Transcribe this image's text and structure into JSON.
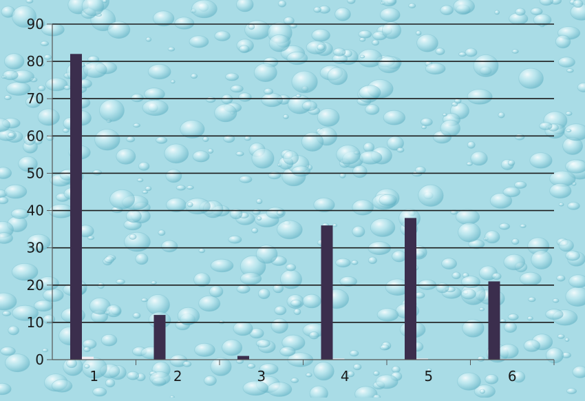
{
  "colors": {
    "background": "#a9dce6",
    "bubble_light": "#d8f2f6",
    "bubble_dark": "#6fb8c8",
    "bar_series_1": "#3b2e4d",
    "bar_series_2": "#f1eef3",
    "grid": "#1a1a1a",
    "axis": "#555555"
  },
  "chart_data": {
    "type": "bar",
    "title": "",
    "xlabel": "",
    "ylabel": "",
    "categories": [
      "1",
      "2",
      "3",
      "4",
      "5",
      "6"
    ],
    "ylim": [
      0,
      90
    ],
    "yticks": [
      0,
      10,
      20,
      30,
      40,
      50,
      60,
      70,
      80,
      90
    ],
    "grid": true,
    "legend": "none",
    "series": [
      {
        "values": [
          82,
          12,
          1,
          36,
          38,
          21
        ]
      },
      {
        "values": [
          0.8,
          0.2,
          0.1,
          0.3,
          0.3,
          0.2
        ]
      }
    ]
  }
}
